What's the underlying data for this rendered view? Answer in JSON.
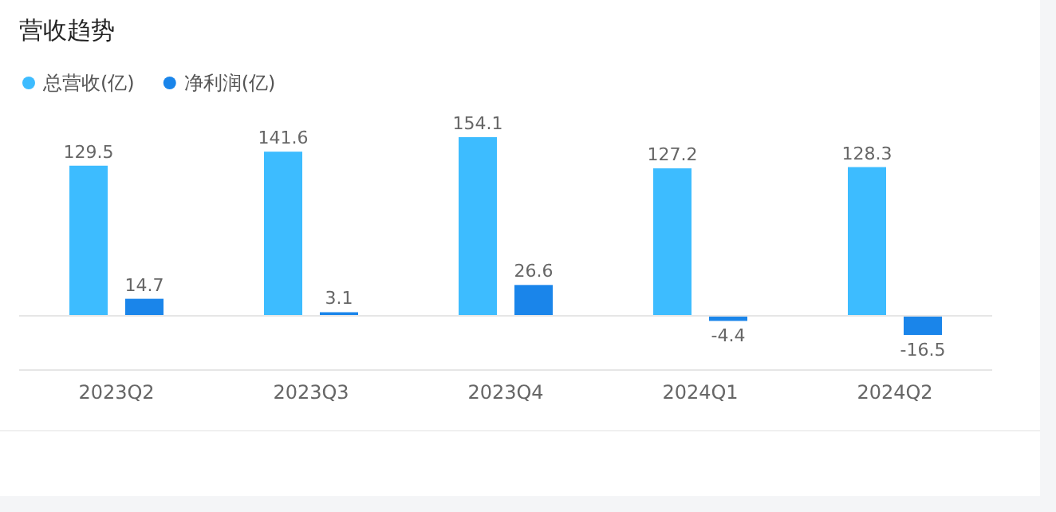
{
  "chart_data": {
    "type": "bar",
    "title": "营收趋势",
    "categories": [
      "2023Q2",
      "2023Q3",
      "2023Q4",
      "2024Q1",
      "2024Q2"
    ],
    "series": [
      {
        "name": "总营收(亿)",
        "color": "#3dbcff",
        "values": [
          129.5,
          141.6,
          154.1,
          127.2,
          128.3
        ]
      },
      {
        "name": "净利润(亿)",
        "color": "#1a85ea",
        "values": [
          14.7,
          3.1,
          26.6,
          -4.4,
          -16.5
        ]
      }
    ],
    "data_labels": true,
    "legend": "top left"
  }
}
